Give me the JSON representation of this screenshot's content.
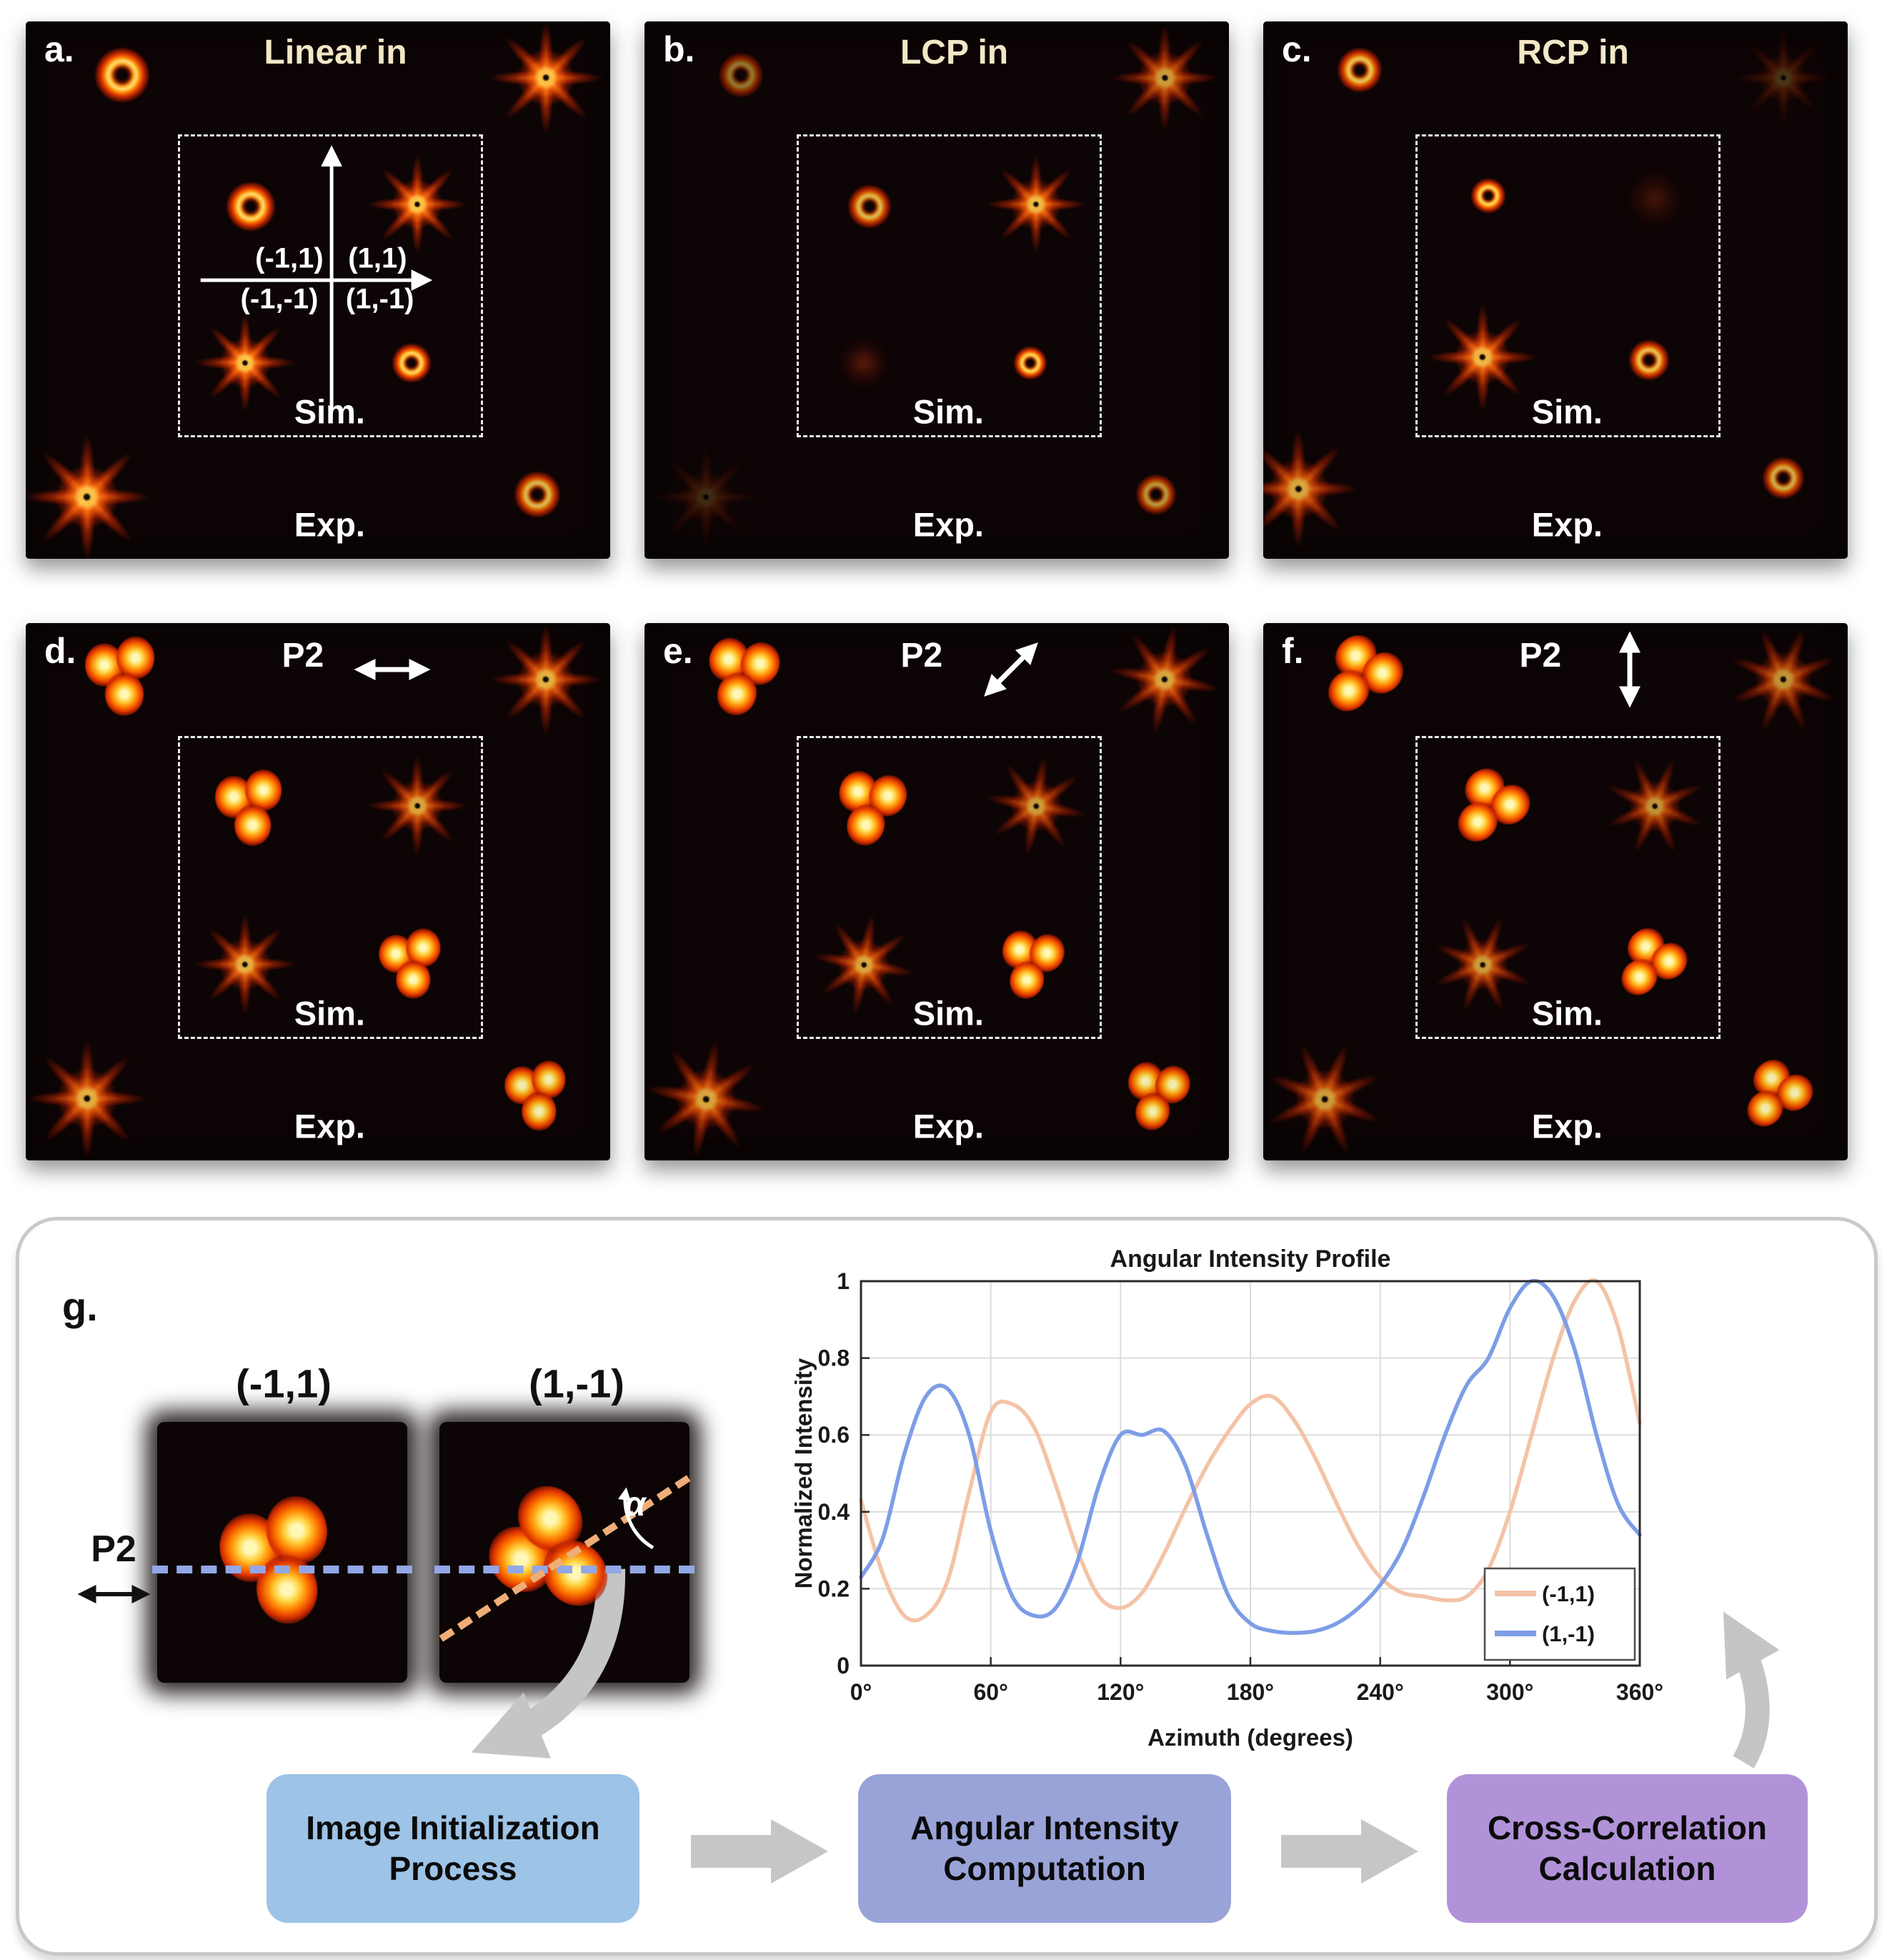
{
  "figure": {
    "panels": [
      {
        "id": "a",
        "tag": "a.",
        "title": "Linear in",
        "sim": "Sim.",
        "exp": "Exp.",
        "quadrants": {
          "tl": "(-1,1)",
          "tr": "(1,1)",
          "bl": "(-1,-1)",
          "br": "(1,-1)"
        }
      },
      {
        "id": "b",
        "tag": "b.",
        "title": "LCP in",
        "sim": "Sim.",
        "exp": "Exp."
      },
      {
        "id": "c",
        "tag": "c.",
        "title": "RCP in",
        "sim": "Sim.",
        "exp": "Exp."
      },
      {
        "id": "d",
        "tag": "d.",
        "title": "P2",
        "polarizer_direction": "horizontal",
        "sim": "Sim.",
        "exp": "Exp."
      },
      {
        "id": "e",
        "tag": "e.",
        "title": "P2",
        "polarizer_direction": "diagonal",
        "sim": "Sim.",
        "exp": "Exp."
      },
      {
        "id": "f",
        "tag": "f.",
        "title": "P2",
        "polarizer_direction": "vertical",
        "sim": "Sim.",
        "exp": "Exp."
      }
    ],
    "panel_g": {
      "tag": "g.",
      "p2_label": "P2",
      "p2_direction": "horizontal",
      "images": [
        {
          "title": "(-1,1)"
        },
        {
          "title": "(1,-1)",
          "alpha_label": "α"
        }
      ]
    },
    "chart_data": {
      "type": "line",
      "title": "Angular Intensity Profile",
      "xlabel": "Azimuth (degrees)",
      "ylabel": "Normalized Intensity",
      "xlim": [
        0,
        360
      ],
      "ylim": [
        0,
        1
      ],
      "x_ticks": [
        "0°",
        "60°",
        "120°",
        "180°",
        "240°",
        "300°",
        "360°"
      ],
      "y_ticks": [
        0,
        0.2,
        0.4,
        0.6,
        0.8,
        1
      ],
      "grid": true,
      "legend_position": "lower right",
      "x_step": 10,
      "series": [
        {
          "name": "(-1,1)",
          "color": "#f4c3a7",
          "values": [
            0.43,
            0.24,
            0.13,
            0.13,
            0.22,
            0.45,
            0.66,
            0.68,
            0.62,
            0.47,
            0.3,
            0.18,
            0.15,
            0.19,
            0.29,
            0.41,
            0.52,
            0.61,
            0.68,
            0.7,
            0.64,
            0.54,
            0.42,
            0.31,
            0.23,
            0.19,
            0.18,
            0.17,
            0.18,
            0.25,
            0.4,
            0.6,
            0.8,
            0.95,
            1.0,
            0.88,
            0.63
          ]
        },
        {
          "name": "(1,-1)",
          "color": "#7d9de6",
          "values": [
            0.23,
            0.33,
            0.55,
            0.7,
            0.72,
            0.6,
            0.35,
            0.18,
            0.13,
            0.15,
            0.27,
            0.47,
            0.6,
            0.6,
            0.61,
            0.52,
            0.34,
            0.18,
            0.11,
            0.09,
            0.085,
            0.09,
            0.11,
            0.15,
            0.21,
            0.3,
            0.44,
            0.6,
            0.73,
            0.8,
            0.93,
            1.0,
            0.96,
            0.82,
            0.6,
            0.42,
            0.34
          ]
        }
      ]
    },
    "flowchart": {
      "steps": [
        {
          "line1": "Image Initialization",
          "line2": "Process",
          "fill": "#9dc3e6"
        },
        {
          "line1": "Angular Intensity",
          "line2": "Computation",
          "fill": "#99a3d8"
        },
        {
          "line1": "Cross-Correlation",
          "line2": "Calculation",
          "fill": "#b192d8"
        }
      ]
    },
    "colors": {
      "panel_title": "#f2e7c6",
      "flow_arrow_gray": "#c5c5c5",
      "cut_line_blue": "#92a7e6",
      "tilt_line_orange": "#efae77"
    }
  }
}
